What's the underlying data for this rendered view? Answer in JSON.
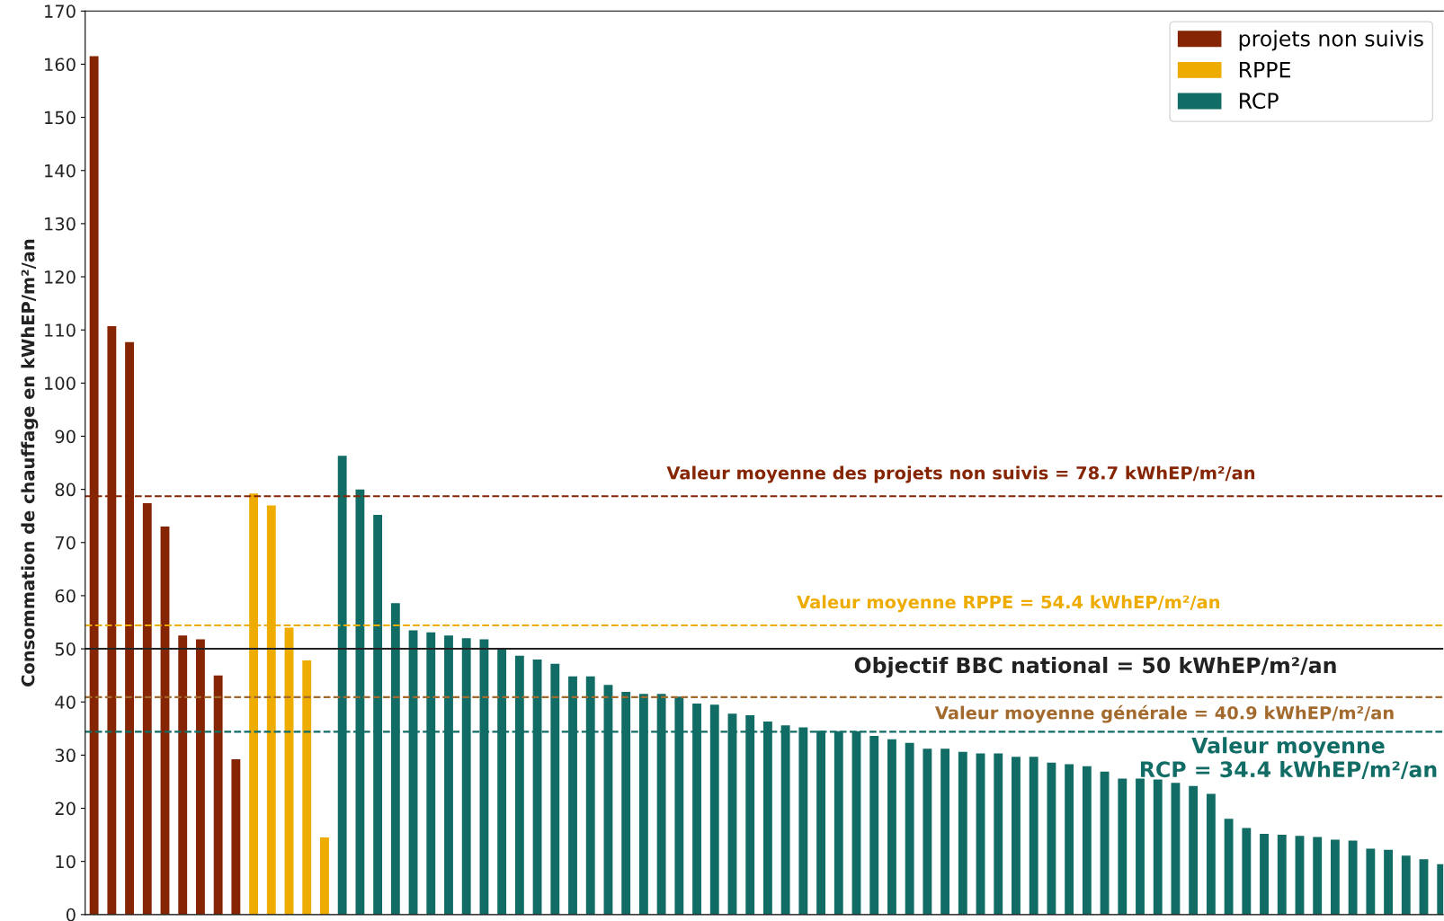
{
  "chart_data": {
    "type": "bar",
    "ylabel": "Consommation de chauffage en kWhEP/m²/an",
    "categories": [
      null,
      null,
      null,
      null,
      null,
      null,
      null,
      null,
      null,
      null,
      null,
      null,
      null,
      null,
      null,
      null,
      null,
      null,
      null,
      null,
      null,
      null,
      null,
      null,
      null,
      null,
      null,
      null,
      null,
      null,
      null,
      null,
      null,
      null,
      null,
      null,
      null,
      null,
      null,
      null,
      null,
      null,
      null,
      null,
      null,
      null,
      null,
      null,
      null,
      null,
      null,
      null,
      null,
      null,
      null,
      null,
      null,
      null,
      null,
      null,
      null,
      null,
      null,
      null,
      null,
      null,
      null,
      null,
      null,
      null,
      null,
      null,
      null,
      null,
      null,
      null,
      null
    ],
    "series": [
      {
        "name": "projets non suivis",
        "color": "#852503",
        "values": [
          161.5,
          110.7,
          107.7,
          77.4,
          73.0,
          52.5,
          51.8,
          45.0,
          29.2,
          null,
          null,
          null,
          null,
          null,
          null,
          null,
          null,
          null,
          null,
          null,
          null,
          null,
          null,
          null,
          null,
          null,
          null,
          null,
          null,
          null,
          null,
          null,
          null,
          null,
          null,
          null,
          null,
          null,
          null,
          null,
          null,
          null,
          null,
          null,
          null,
          null,
          null,
          null,
          null,
          null,
          null,
          null,
          null,
          null,
          null,
          null,
          null,
          null,
          null,
          null,
          null,
          null,
          null,
          null,
          null,
          null,
          null,
          null,
          null,
          null,
          null,
          null,
          null,
          null,
          null,
          null,
          null
        ]
      },
      {
        "name": "RPPE",
        "color": "#eeab00",
        "values": [
          null,
          null,
          null,
          null,
          null,
          null,
          null,
          null,
          null,
          79.2,
          77.0,
          54.0,
          47.8,
          14.5,
          null,
          null,
          null,
          null,
          null,
          null,
          null,
          null,
          null,
          null,
          null,
          null,
          null,
          null,
          null,
          null,
          null,
          null,
          null,
          null,
          null,
          null,
          null,
          null,
          null,
          null,
          null,
          null,
          null,
          null,
          null,
          null,
          null,
          null,
          null,
          null,
          null,
          null,
          null,
          null,
          null,
          null,
          null,
          null,
          null,
          null,
          null,
          null,
          null,
          null,
          null,
          null,
          null,
          null,
          null,
          null,
          null,
          null,
          null,
          null,
          null,
          null,
          null
        ]
      },
      {
        "name": "RCP",
        "color": "#126c66",
        "values": [
          null,
          null,
          null,
          null,
          null,
          null,
          null,
          null,
          null,
          null,
          null,
          null,
          null,
          null,
          86.3,
          80.0,
          75.2,
          58.6,
          53.5,
          53.1,
          52.5,
          52.0,
          51.8,
          50.0,
          48.7,
          48.0,
          47.2,
          44.8,
          44.8,
          43.2,
          41.9,
          41.5,
          41.5,
          41.0,
          39.7,
          39.5,
          37.8,
          37.5,
          36.3,
          35.6,
          35.2,
          34.6,
          34.5,
          34.5,
          33.6,
          33.0,
          32.3,
          31.2,
          31.2,
          30.6,
          30.3,
          30.3,
          29.7,
          29.7,
          28.6,
          28.3,
          27.9,
          26.9,
          25.6,
          25.6,
          25.4,
          24.8,
          24.2,
          22.7,
          18.0,
          16.3,
          15.2,
          15.0,
          14.8,
          14.6,
          14.1,
          13.9,
          12.4,
          12.2,
          11.1,
          10.4,
          9.5
        ]
      }
    ],
    "ylim": [
      0,
      170
    ],
    "yticks": [
      0,
      10,
      20,
      30,
      40,
      50,
      60,
      70,
      80,
      90,
      100,
      110,
      120,
      130,
      140,
      150,
      160,
      170
    ],
    "ref_lines": [
      {
        "axis": "y",
        "value": 78.7,
        "label": "Valeur moyenne des projets non suivis = 78.7 kWhEP/m²/an",
        "color": "#852503",
        "line_style": "dashed"
      },
      {
        "axis": "y",
        "value": 54.4,
        "label": "Valeur moyenne RPPE = 54.4 kWhEP/m²/an",
        "color": "#eeab00",
        "line_style": "dashed"
      },
      {
        "axis": "y",
        "value": 50,
        "label": "Objectif BBC national = 50 kWhEP/m²/an",
        "color": "#222222",
        "line_style": "solid"
      },
      {
        "axis": "y",
        "value": 40.9,
        "label": "Valeur moyenne générale = 40.9 kWhEP/m²/an",
        "color": "#a36a2e",
        "line_style": "dashed"
      },
      {
        "axis": "y",
        "value": 34.4,
        "label": "Valeur moyenne\nRCP = 34.4 kWhEP/m²/an",
        "color": "#126c66",
        "line_style": "dashed"
      }
    ],
    "legend": "top right",
    "grid": false,
    "tick_labels": "y"
  }
}
